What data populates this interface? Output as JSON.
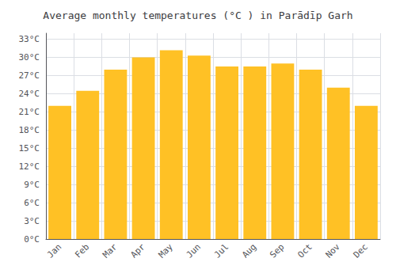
{
  "chart_data": {
    "type": "bar",
    "title": "Average monthly temperatures (°C ) in Parādīp Garh",
    "categories": [
      "Jan",
      "Feb",
      "Mar",
      "Apr",
      "May",
      "Jun",
      "Jul",
      "Aug",
      "Sep",
      "Oct",
      "Nov",
      "Dec"
    ],
    "values": [
      22.0,
      24.5,
      28.0,
      30.0,
      31.2,
      30.3,
      28.5,
      28.5,
      29.0,
      28.0,
      25.0,
      22.0
    ],
    "color": "#FFC125",
    "ylim": [
      0,
      34
    ],
    "yticks": [
      {
        "value": 0,
        "label": "0°C"
      },
      {
        "value": 3,
        "label": "3°C"
      },
      {
        "value": 6,
        "label": "6°C"
      },
      {
        "value": 9,
        "label": "9°C"
      },
      {
        "value": 12,
        "label": "12°C"
      },
      {
        "value": 15,
        "label": "15°C"
      },
      {
        "value": 18,
        "label": "18°C"
      },
      {
        "value": 21,
        "label": "21°C"
      },
      {
        "value": 24,
        "label": "24°C"
      },
      {
        "value": 27,
        "label": "27°C"
      },
      {
        "value": 30,
        "label": "30°C"
      },
      {
        "value": 33,
        "label": "33°C"
      }
    ],
    "grid": true
  }
}
